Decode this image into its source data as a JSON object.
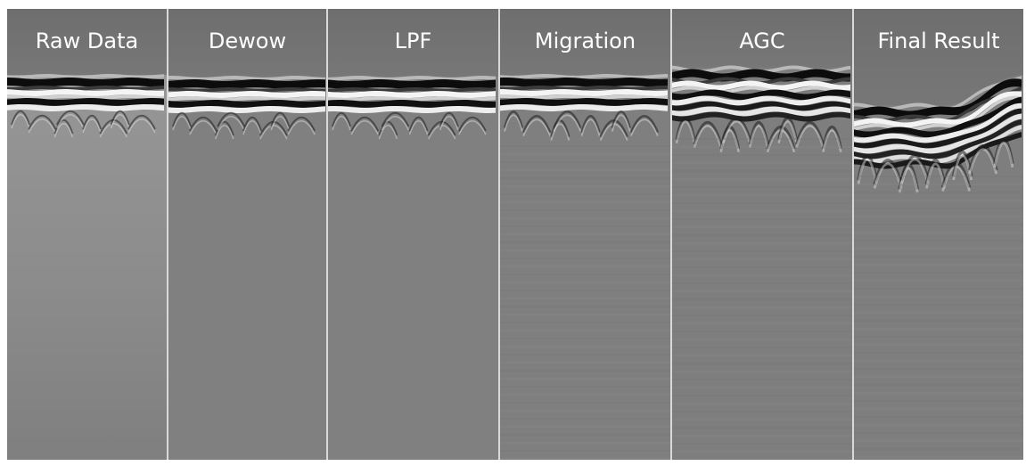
{
  "panels": [
    {
      "label": "Raw Data"
    },
    {
      "label": "Dewow"
    },
    {
      "label": "LPF"
    },
    {
      "label": "Migration"
    },
    {
      "label": "AGC"
    },
    {
      "label": "Final Result"
    }
  ]
}
